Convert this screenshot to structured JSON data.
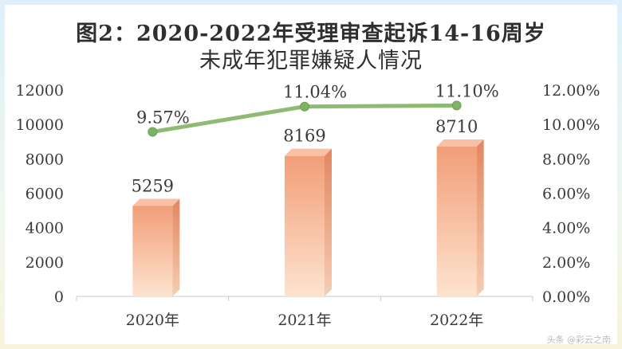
{
  "chart_data": {
    "type": "bar",
    "title_line1": "图2：2020-2022年受理审查起诉14-16周岁",
    "title_line2": "未成年犯罪嫌疑人情况",
    "categories": [
      "2020年",
      "2021年",
      "2022年"
    ],
    "series": [
      {
        "type": "bar",
        "values": [
          5259,
          8169,
          8710
        ],
        "labels": [
          "5259",
          "8169",
          "8710"
        ],
        "color": "#f2a481",
        "axis": "left"
      },
      {
        "type": "line",
        "values": [
          9.57,
          11.04,
          11.1
        ],
        "labels": [
          "9.57%",
          "11.04%",
          "11.10%"
        ],
        "color": "#8dbb72",
        "axis": "right"
      }
    ],
    "y_left": {
      "min": 0,
      "max": 12000,
      "ticks": [
        "0",
        "2000",
        "4000",
        "6000",
        "8000",
        "10000",
        "12000"
      ]
    },
    "y_right": {
      "min": 0,
      "max": 12,
      "ticks": [
        "0.00%",
        "2.00%",
        "4.00%",
        "6.00%",
        "8.00%",
        "10.00%",
        "12.00%"
      ]
    },
    "grid": false,
    "legend": "none",
    "watermark": "头条 @彩云之南"
  }
}
